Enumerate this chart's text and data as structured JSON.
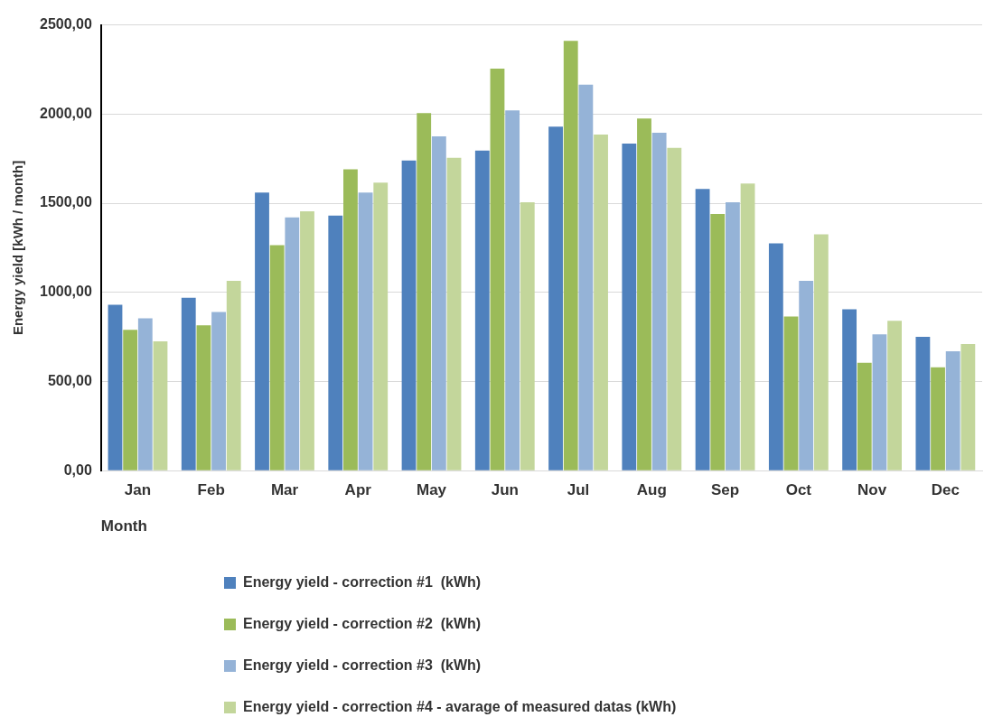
{
  "chart_data": {
    "type": "bar",
    "xlabel": "Month",
    "ylabel": "Energy yield [kWh / month]",
    "categories": [
      "Jan",
      "Feb",
      "Mar",
      "Apr",
      "May",
      "Jun",
      "Jul",
      "Aug",
      "Sep",
      "Oct",
      "Nov",
      "Dec"
    ],
    "series": [
      {
        "name": "Energy yield - correction #1  (kWh)",
        "color": "#4f81bd",
        "values": [
          930,
          970,
          1560,
          1430,
          1740,
          1795,
          1930,
          1835,
          1580,
          1275,
          905,
          750
        ]
      },
      {
        "name": "Energy yield - correction #2  (kWh)",
        "color": "#9bbb59",
        "values": [
          790,
          815,
          1265,
          1690,
          2005,
          2255,
          2410,
          1975,
          1440,
          865,
          605,
          580
        ]
      },
      {
        "name": "Energy yield - correction #3  (kWh)",
        "color": "#95b3d7",
        "values": [
          855,
          890,
          1420,
          1560,
          1875,
          2020,
          2165,
          1895,
          1505,
          1065,
          765,
          670
        ]
      },
      {
        "name": "Energy yield - correction #4 - avarage of measured datas (kWh)",
        "color": "#c3d69b",
        "values": [
          725,
          1065,
          1455,
          1615,
          1755,
          1505,
          1885,
          1810,
          1610,
          1325,
          840,
          710
        ]
      }
    ],
    "ylim": [
      0,
      2500
    ],
    "yticks": [
      {
        "value": 0,
        "label": "0,00"
      },
      {
        "value": 500,
        "label": "500,00"
      },
      {
        "value": 1000,
        "label": "1000,00"
      },
      {
        "value": 1500,
        "label": "1500,00"
      },
      {
        "value": 2000,
        "label": "2000,00"
      },
      {
        "value": 2500,
        "label": "2500,00"
      }
    ],
    "grid": "y",
    "legend": "bottom"
  }
}
